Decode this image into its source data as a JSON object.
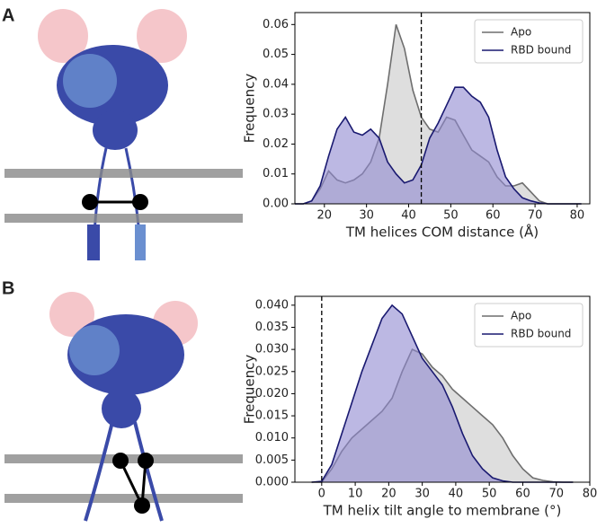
{
  "chart_data": [
    {
      "type": "area",
      "panel": "A",
      "xlabel": "TM helices COM distance (Å)",
      "ylabel": "Frequency",
      "xlim": [
        13,
        83
      ],
      "xticks": [
        20,
        30,
        40,
        50,
        60,
        70,
        80
      ],
      "ylim": [
        0,
        0.064
      ],
      "yticks": [
        {
          "value": 0,
          "label": "0.00"
        },
        0.01,
        0.02,
        0.03,
        0.04,
        0.05,
        0.06
      ],
      "vline": 43,
      "legend": "upper right",
      "x": [
        13,
        15,
        17,
        19,
        21,
        23,
        25,
        27,
        29,
        31,
        33,
        35,
        37,
        39,
        41,
        43,
        45,
        47,
        49,
        51,
        53,
        55,
        57,
        59,
        61,
        63,
        65,
        67,
        69,
        71,
        73,
        75,
        77,
        79,
        81
      ],
      "series": [
        {
          "name": "Apo",
          "color": "#6e6e6e",
          "fill": "#c8c8c8",
          "values": [
            0,
            0,
            0.001,
            0.005,
            0.011,
            0.008,
            0.007,
            0.008,
            0.01,
            0.014,
            0.022,
            0.04,
            0.06,
            0.052,
            0.038,
            0.029,
            0.025,
            0.024,
            0.029,
            0.028,
            0.023,
            0.018,
            0.016,
            0.014,
            0.009,
            0.006,
            0.006,
            0.007,
            0.004,
            0.001,
            0,
            0,
            0,
            0,
            0
          ]
        },
        {
          "name": "RBD bound",
          "color": "#191970",
          "fill": "#8f88d0",
          "values": [
            0,
            0,
            0.001,
            0.006,
            0.016,
            0.025,
            0.029,
            0.024,
            0.023,
            0.025,
            0.022,
            0.014,
            0.01,
            0.007,
            0.008,
            0.013,
            0.022,
            0.027,
            0.033,
            0.039,
            0.039,
            0.036,
            0.034,
            0.029,
            0.018,
            0.009,
            0.005,
            0.002,
            0.001,
            0.0003,
            0,
            0,
            0,
            0,
            0
          ]
        }
      ]
    },
    {
      "type": "area",
      "panel": "B",
      "xlabel": "TM helix tilt angle to membrane (°)",
      "ylabel": "Frequency",
      "xlim": [
        -8,
        80
      ],
      "xticks": [
        0,
        10,
        20,
        30,
        40,
        50,
        60,
        70,
        80
      ],
      "ylim": [
        0,
        0.042
      ],
      "yticks": [
        {
          "value": 0,
          "label": "0.000"
        },
        0.005,
        {
          "value": 0.01,
          "label": "0.010"
        },
        0.015,
        {
          "value": 0.02,
          "label": "0.020"
        },
        0.025,
        {
          "value": 0.03,
          "label": "0.030"
        },
        0.035,
        {
          "value": 0.04,
          "label": "0.040"
        }
      ],
      "vline": 0,
      "legend": "upper right",
      "x": [
        -3,
        0,
        3,
        6,
        9,
        12,
        15,
        18,
        21,
        24,
        27,
        30,
        33,
        36,
        39,
        42,
        45,
        48,
        51,
        54,
        57,
        60,
        63,
        66,
        69,
        72,
        75
      ],
      "series": [
        {
          "name": "Apo",
          "color": "#6e6e6e",
          "fill": "#c8c8c8",
          "values": [
            0,
            0,
            0.003,
            0.007,
            0.01,
            0.012,
            0.014,
            0.016,
            0.019,
            0.025,
            0.03,
            0.029,
            0.026,
            0.024,
            0.021,
            0.019,
            0.017,
            0.015,
            0.013,
            0.01,
            0.006,
            0.003,
            0.001,
            0.0004,
            0.0001,
            0,
            0
          ]
        },
        {
          "name": "RBD bound",
          "color": "#191970",
          "fill": "#8f88d0",
          "values": [
            0,
            0.0002,
            0.004,
            0.011,
            0.018,
            0.025,
            0.031,
            0.037,
            0.04,
            0.038,
            0.033,
            0.028,
            0.025,
            0.022,
            0.017,
            0.011,
            0.006,
            0.003,
            0.001,
            0.0003,
            0,
            0,
            0,
            0,
            0,
            0,
            0
          ]
        }
      ]
    }
  ]
}
